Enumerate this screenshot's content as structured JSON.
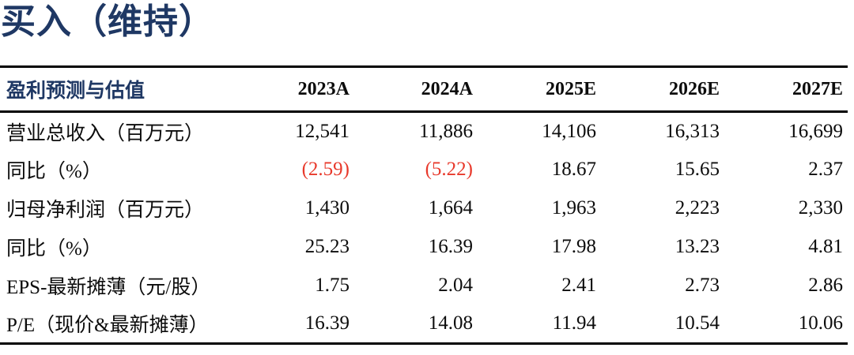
{
  "title": "买入（维持）",
  "colors": {
    "navy": "#1f3864",
    "red": "#e8392b",
    "ink": "#0c0c0c",
    "line": "#000000"
  },
  "table": {
    "header": [
      "盈利预测与估值",
      "2023A",
      "2024A",
      "2025E",
      "2026E",
      "2027E"
    ],
    "rows": [
      {
        "label": "营业总收入（百万元）",
        "values": [
          "12,541",
          "11,886",
          "14,106",
          "16,313",
          "16,699"
        ]
      },
      {
        "label": "同比（%）",
        "values": [
          "(2.59)",
          "(5.22)",
          "18.67",
          "15.65",
          "2.37"
        ]
      },
      {
        "label": "归母净利润（百万元）",
        "values": [
          "1,430",
          "1,664",
          "1,963",
          "2,223",
          "2,330"
        ]
      },
      {
        "label": "同比（%）",
        "values": [
          "25.23",
          "16.39",
          "17.98",
          "13.23",
          "4.81"
        ]
      },
      {
        "label": "EPS-最新摊薄（元/股）",
        "values": [
          "1.75",
          "2.04",
          "2.41",
          "2.73",
          "2.86"
        ]
      },
      {
        "label": "P/E（现价&最新摊薄）",
        "values": [
          "16.39",
          "14.08",
          "11.94",
          "10.54",
          "10.06"
        ]
      }
    ]
  }
}
